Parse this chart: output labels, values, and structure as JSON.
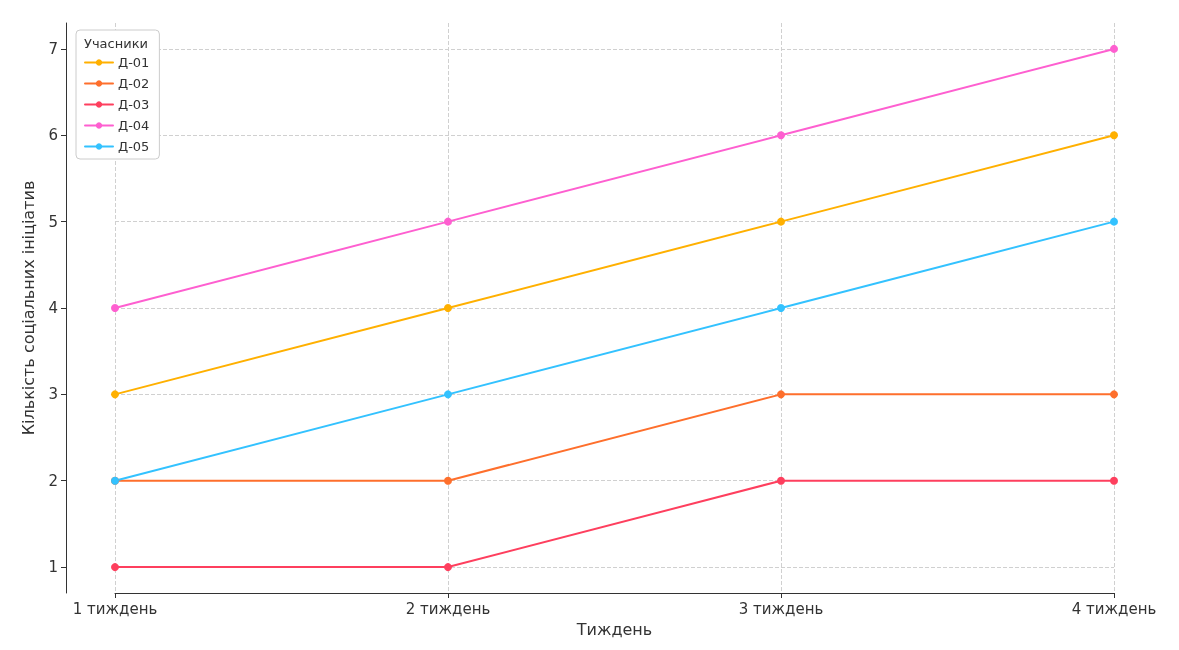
{
  "chart_data": {
    "type": "line",
    "xlabel": "Тиждень",
    "ylabel": "Кількість соціальних ініціатив",
    "legend_title": "Учасники",
    "categories": [
      "1 тиждень",
      "2 тиждень",
      "3 тиждень",
      "4 тиждень"
    ],
    "series": [
      {
        "name": "Д-01",
        "color": "#ffb000",
        "values": [
          3,
          4,
          5,
          6
        ]
      },
      {
        "name": "Д-02",
        "color": "#fe6f2c",
        "values": [
          2,
          2,
          3,
          3
        ]
      },
      {
        "name": "Д-03",
        "color": "#fe3f5e",
        "values": [
          1,
          1,
          2,
          2
        ]
      },
      {
        "name": "Д-04",
        "color": "#fe5fd0",
        "values": [
          4,
          5,
          6,
          7
        ]
      },
      {
        "name": "Д-05",
        "color": "#33c2ff",
        "values": [
          2,
          3,
          4,
          5
        ]
      }
    ],
    "ylim": [
      0.7,
      7.3
    ],
    "yticks": [
      1,
      2,
      3,
      4,
      5,
      6,
      7
    ],
    "grid": true,
    "legend": "top left",
    "marker": "circle",
    "line_style": "solid"
  }
}
